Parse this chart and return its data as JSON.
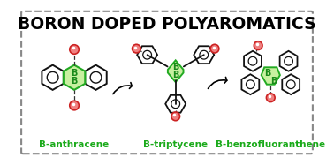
{
  "title": "BORON DOPED POLYAROMATICS",
  "title_fontsize": 13.5,
  "title_fontweight": "bold",
  "label_anthracene": "B-anthracene",
  "label_triptycene": "B-triptycene",
  "label_benzofluoranthene": "B-benzofluoranthene",
  "label_color": "#1aaa1a",
  "label_fontsize": 7.5,
  "label_fontweight": "bold",
  "bg_color": "#ffffff",
  "border_color": "#888888",
  "green_fill": "#c8f0a0",
  "green_stroke": "#22aa22",
  "black_stroke": "#111111",
  "red_circle_fill": "#f08080",
  "red_circle_edge": "#cc2222",
  "B_label_color": "#1a8a1a",
  "arrow_color": "#111111"
}
